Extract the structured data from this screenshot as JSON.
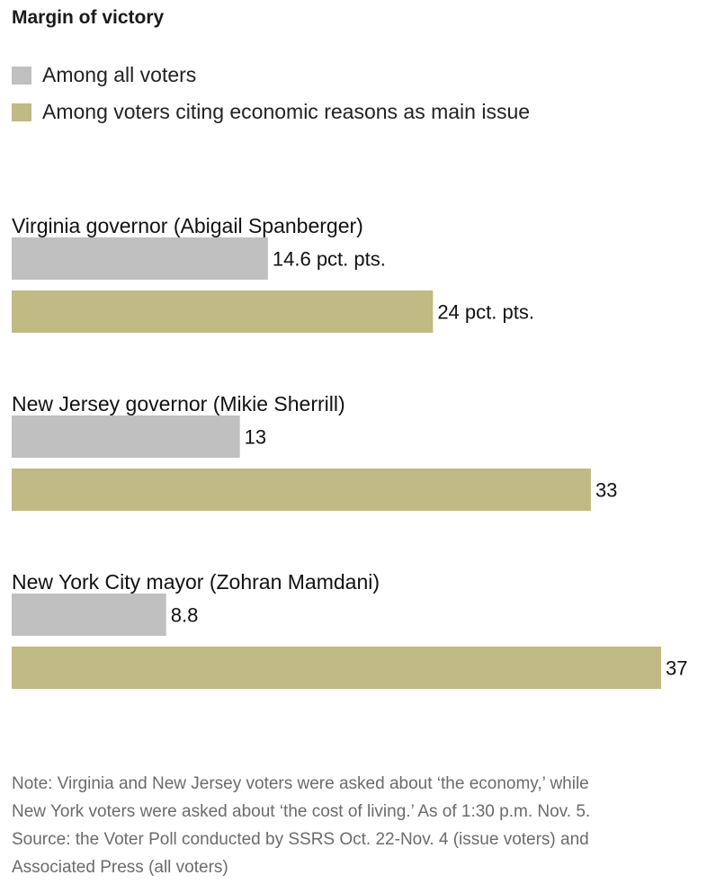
{
  "title": "Margin of victory",
  "legend": [
    {
      "label": "Among all voters",
      "color": "#c0c0c0"
    },
    {
      "label": "Among voters citing economic reasons as main issue",
      "color": "#c0ba84"
    }
  ],
  "chart_data": {
    "type": "bar",
    "orientation": "horizontal",
    "title": "Margin of victory",
    "xlabel": "",
    "ylabel": "",
    "xlim": [
      0,
      37
    ],
    "unit": "pct. pts.",
    "categories": [
      "Virginia governor (Abigail Spanberger)",
      "New Jersey governor (Mikie Sherrill)",
      "New York City mayor (Zohran Mamdani)"
    ],
    "series": [
      {
        "name": "Among all voters",
        "color": "#c0c0c0",
        "values": [
          14.6,
          13,
          8.8
        ],
        "labels": [
          "14.6 pct. pts.",
          "13",
          "8.8"
        ]
      },
      {
        "name": "Among voters citing economic reasons as main issue",
        "color": "#c0ba84",
        "values": [
          24,
          33,
          37
        ],
        "labels": [
          "24 pct. pts.",
          "33",
          "37"
        ]
      }
    ]
  },
  "note": {
    "lines": [
      "Note: Virginia and New Jersey voters were asked about ‘the economy,’ while",
      "New York voters were asked about ‘the cost of living.’ As of 1:30 p.m. Nov. 5.",
      "Source: the Voter Poll conducted by SSRS Oct. 22-Nov. 4 (issue voters) and",
      "Associated Press (all voters)"
    ]
  }
}
